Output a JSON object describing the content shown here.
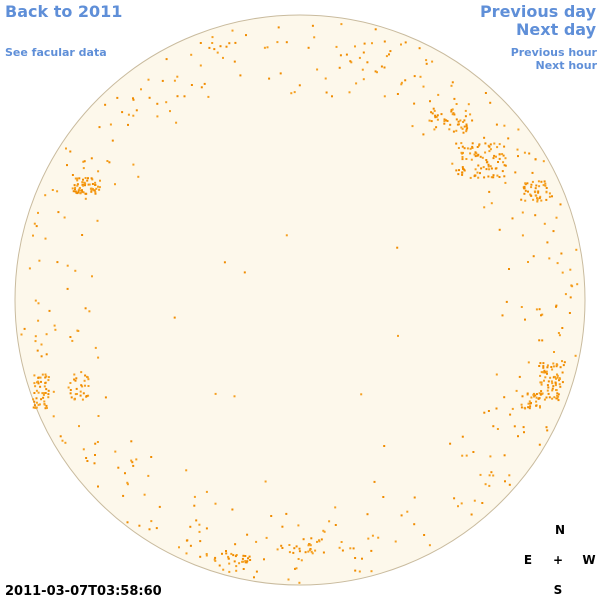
{
  "links": {
    "back": "Back to 2011",
    "facular": "See facular data",
    "previous_day": "Previous day",
    "next_day": "Next day",
    "previous_hour": "Previous hour",
    "next_hour": "Next hour"
  },
  "compass": {
    "n": "N",
    "e": "E",
    "center": "+",
    "w": "W",
    "s": "S"
  },
  "timestamp": "2011-03-07T03:58:60"
}
